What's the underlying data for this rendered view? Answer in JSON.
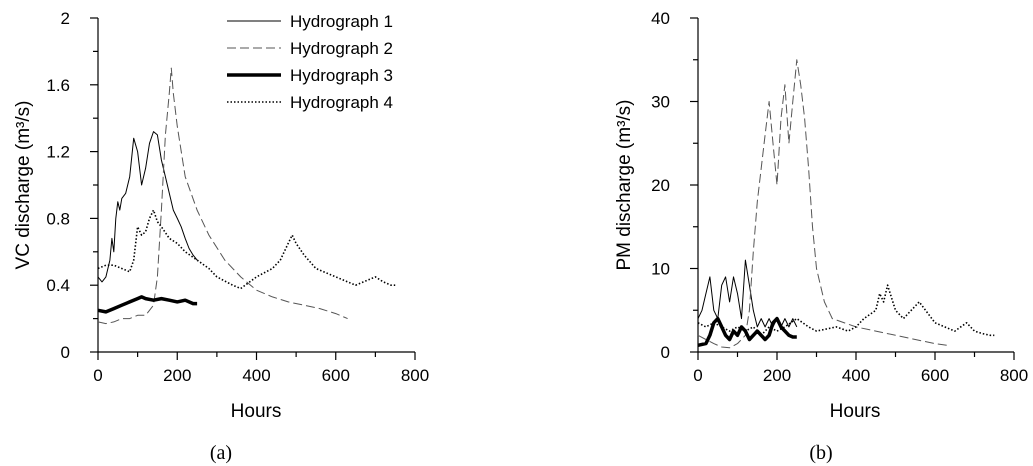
{
  "chart_data": [
    {
      "type": "line",
      "panel": "a",
      "caption": "(a)",
      "xlabel": "Hours",
      "ylabel": "VC discharge (m³/s)",
      "xlim": [
        0,
        800
      ],
      "ylim": [
        0,
        2
      ],
      "x_ticks": [
        "0",
        "200",
        "400",
        "600",
        "800"
      ],
      "y_ticks": [
        "0",
        "0.4",
        "0.8",
        "1.2",
        "1.6",
        "2"
      ],
      "legend_position": "top-right",
      "series": [
        {
          "name": "Hydrograph 1",
          "style": "thin-solid",
          "x": [
            0,
            10,
            20,
            30,
            35,
            40,
            45,
            50,
            55,
            60,
            70,
            80,
            90,
            100,
            110,
            120,
            130,
            140,
            150,
            160,
            170,
            180,
            190,
            200,
            210,
            220,
            230,
            240,
            250
          ],
          "y": [
            0.45,
            0.42,
            0.45,
            0.55,
            0.68,
            0.6,
            0.8,
            0.9,
            0.85,
            0.92,
            0.95,
            1.05,
            1.28,
            1.2,
            1.0,
            1.1,
            1.25,
            1.32,
            1.3,
            1.15,
            1.05,
            0.95,
            0.85,
            0.8,
            0.75,
            0.68,
            0.62,
            0.58,
            0.55
          ]
        },
        {
          "name": "Hydrograph 2",
          "style": "thin-dashed",
          "x": [
            0,
            20,
            40,
            60,
            80,
            100,
            120,
            140,
            150,
            160,
            170,
            180,
            185,
            190,
            200,
            220,
            250,
            280,
            320,
            360,
            400,
            440,
            480,
            520,
            560,
            600,
            630
          ],
          "y": [
            0.18,
            0.17,
            0.18,
            0.2,
            0.2,
            0.22,
            0.22,
            0.28,
            0.45,
            0.85,
            1.3,
            1.55,
            1.7,
            1.55,
            1.35,
            1.05,
            0.85,
            0.7,
            0.55,
            0.45,
            0.37,
            0.33,
            0.3,
            0.28,
            0.26,
            0.23,
            0.2
          ]
        },
        {
          "name": "Hydrograph 3",
          "style": "thick-solid",
          "x": [
            0,
            20,
            40,
            60,
            80,
            100,
            110,
            120,
            140,
            160,
            180,
            200,
            220,
            240,
            250
          ],
          "y": [
            0.25,
            0.24,
            0.26,
            0.28,
            0.3,
            0.32,
            0.33,
            0.32,
            0.31,
            0.32,
            0.31,
            0.3,
            0.31,
            0.29,
            0.29
          ]
        },
        {
          "name": "Hydrograph 4",
          "style": "dotted",
          "x": [
            0,
            20,
            40,
            60,
            80,
            90,
            100,
            110,
            120,
            130,
            140,
            150,
            160,
            180,
            200,
            220,
            250,
            280,
            300,
            340,
            360,
            400,
            440,
            460,
            480,
            490,
            500,
            520,
            550,
            600,
            650,
            700,
            720,
            740,
            750
          ],
          "y": [
            0.5,
            0.52,
            0.52,
            0.5,
            0.48,
            0.55,
            0.75,
            0.7,
            0.72,
            0.8,
            0.85,
            0.78,
            0.75,
            0.68,
            0.65,
            0.6,
            0.55,
            0.5,
            0.45,
            0.4,
            0.38,
            0.45,
            0.5,
            0.55,
            0.65,
            0.7,
            0.65,
            0.58,
            0.5,
            0.45,
            0.4,
            0.45,
            0.42,
            0.4,
            0.4
          ]
        }
      ]
    },
    {
      "type": "line",
      "panel": "b",
      "caption": "(b)",
      "xlabel": "Hours",
      "ylabel": "PM discharge (m³/s)",
      "xlim": [
        0,
        800
      ],
      "ylim": [
        0,
        40
      ],
      "x_ticks": [
        "0",
        "200",
        "400",
        "600",
        "800"
      ],
      "y_ticks": [
        "0",
        "10",
        "20",
        "30",
        "40"
      ],
      "series": [
        {
          "name": "Hydrograph 1",
          "style": "thin-solid",
          "x": [
            0,
            10,
            20,
            30,
            40,
            50,
            60,
            70,
            80,
            90,
            100,
            110,
            120,
            130,
            140,
            150,
            160,
            170,
            180,
            190,
            200,
            210,
            220,
            230,
            240,
            250
          ],
          "y": [
            4,
            5,
            7,
            9,
            5,
            4,
            8,
            9,
            6,
            9,
            7,
            4,
            11,
            8,
            5,
            3,
            4,
            3,
            4,
            3,
            4,
            3,
            4,
            3,
            4,
            3
          ]
        },
        {
          "name": "Hydrograph 2",
          "style": "thin-dashed",
          "x": [
            0,
            20,
            40,
            60,
            80,
            100,
            120,
            130,
            140,
            150,
            160,
            170,
            180,
            190,
            200,
            210,
            220,
            230,
            240,
            250,
            260,
            270,
            280,
            290,
            300,
            320,
            340,
            400,
            450,
            500,
            550,
            600,
            630
          ],
          "y": [
            2,
            1.5,
            1,
            0.6,
            0.5,
            1,
            2,
            5,
            12,
            18,
            22,
            26,
            30,
            25,
            20,
            28,
            32,
            25,
            30,
            35,
            32,
            28,
            22,
            15,
            10,
            6,
            4,
            3,
            2.5,
            2,
            1.5,
            1,
            0.8
          ]
        },
        {
          "name": "Hydrograph 3",
          "style": "thick-solid",
          "x": [
            0,
            20,
            30,
            40,
            50,
            60,
            70,
            80,
            90,
            100,
            110,
            120,
            130,
            140,
            150,
            160,
            170,
            180,
            190,
            200,
            210,
            220,
            230,
            240,
            250
          ],
          "y": [
            0.8,
            1,
            2,
            3.5,
            4,
            3,
            2,
            1.5,
            2.5,
            2,
            3,
            2.5,
            1.5,
            2,
            2.5,
            2,
            1.5,
            2,
            3.5,
            4,
            3,
            2.5,
            2,
            1.8,
            1.8
          ]
        },
        {
          "name": "Hydrograph 4",
          "style": "dotted",
          "x": [
            0,
            20,
            40,
            60,
            80,
            100,
            120,
            140,
            160,
            180,
            200,
            220,
            250,
            280,
            300,
            350,
            380,
            400,
            420,
            450,
            460,
            470,
            480,
            500,
            520,
            560,
            600,
            650,
            680,
            690,
            700,
            720,
            740,
            750
          ],
          "y": [
            3.5,
            3,
            3.5,
            3,
            2.5,
            3,
            2.5,
            3,
            2,
            3,
            2.5,
            3,
            4,
            3,
            2.5,
            3,
            2.5,
            3,
            4,
            5,
            7,
            6,
            8,
            5,
            4,
            6,
            3.5,
            2.5,
            3.5,
            3,
            2.5,
            2.2,
            2,
            2
          ]
        }
      ]
    }
  ]
}
